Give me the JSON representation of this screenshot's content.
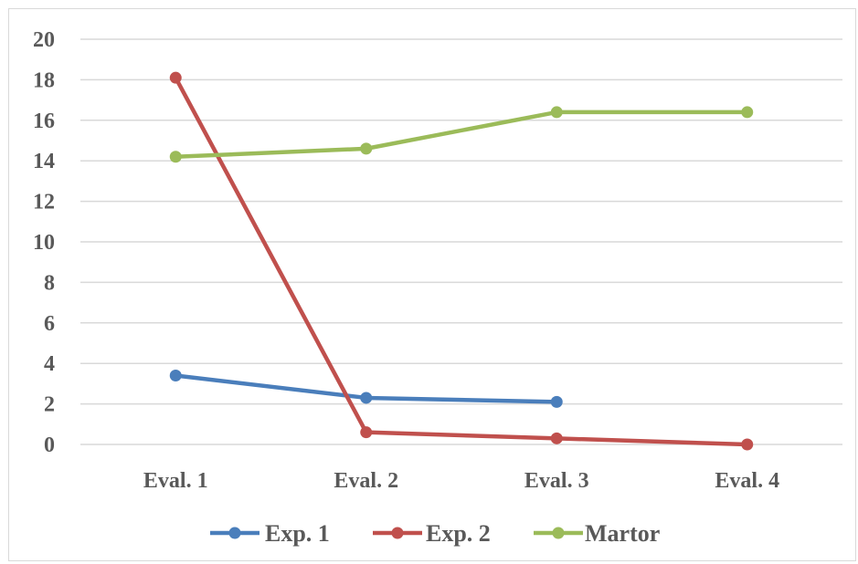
{
  "chart_data": {
    "type": "line",
    "title": "",
    "xlabel": "",
    "ylabel": "",
    "categories": [
      "Eval. 1",
      "Eval. 2",
      "Eval. 3",
      "Eval. 4"
    ],
    "ylim": [
      0,
      20
    ],
    "yticks": [
      "0",
      "2",
      "4",
      "6",
      "8",
      "10",
      "12",
      "14",
      "16",
      "18",
      "20"
    ],
    "grid": true,
    "legend_position": "bottom",
    "series": [
      {
        "name": "Exp. 1",
        "color": "#4a7ebb",
        "values": [
          3.4,
          2.3,
          2.1,
          null
        ]
      },
      {
        "name": "Exp. 2",
        "color": "#c0504d",
        "values": [
          18.1,
          0.6,
          0.3,
          0.0
        ]
      },
      {
        "name": "Martor",
        "color": "#9bbb59",
        "values": [
          14.2,
          14.6,
          16.4,
          16.4
        ]
      }
    ]
  }
}
